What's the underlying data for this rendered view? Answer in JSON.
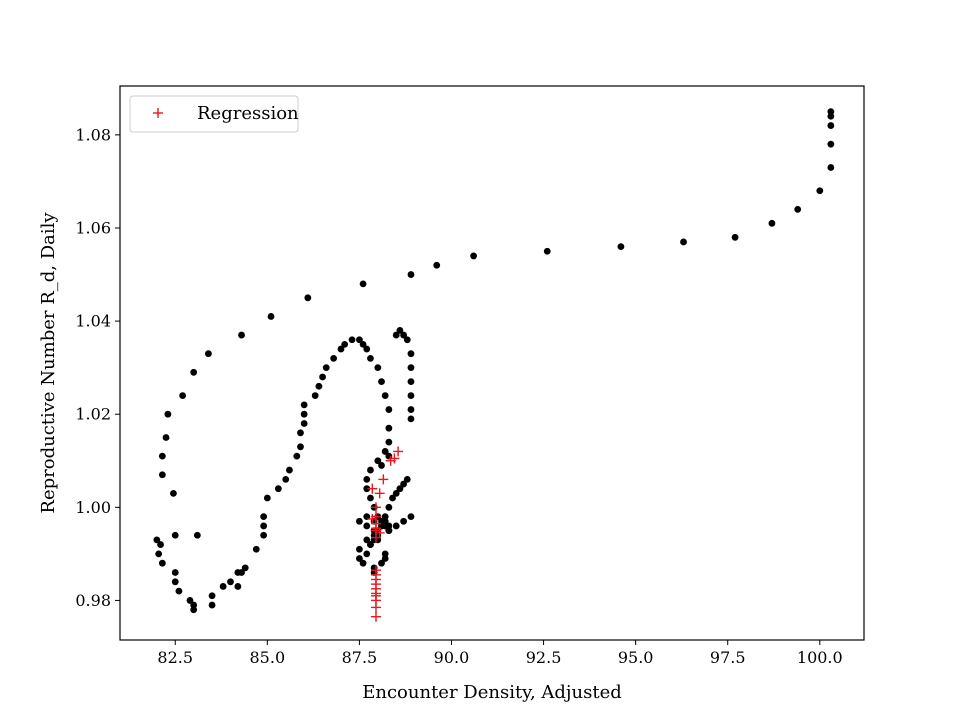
{
  "chart_data": {
    "type": "scatter",
    "title": "",
    "xlabel": "Encounter Density, Adjusted",
    "ylabel": "Reproductive Number R_d, Daily",
    "xlim": [
      81.0,
      101.2
    ],
    "ylim": [
      0.9715,
      1.0905
    ],
    "xticks": [
      82.5,
      85.0,
      87.5,
      90.0,
      92.5,
      95.0,
      97.5,
      100.0
    ],
    "xtick_labels": [
      "82.5",
      "85.0",
      "87.5",
      "90.0",
      "92.5",
      "95.0",
      "97.5",
      "100.0"
    ],
    "yticks": [
      0.98,
      1.0,
      1.02,
      1.04,
      1.06,
      1.08
    ],
    "ytick_labels": [
      "0.98",
      "1.00",
      "1.02",
      "1.04",
      "1.06",
      "1.08"
    ],
    "grid": false,
    "legend": {
      "position": "upper-left",
      "entries": [
        {
          "label": "Regression",
          "marker": "plus",
          "color": "#e41a1c"
        }
      ]
    },
    "colors": {
      "data": "#000000",
      "regression": "#e41a1c"
    },
    "series": [
      {
        "marker": "circle",
        "color": "#000000",
        "x": [
          100.3,
          100.3,
          100.3,
          100.3,
          100.3,
          100.0,
          99.4,
          98.7,
          97.7,
          96.3,
          94.6,
          92.6,
          90.6,
          89.6,
          88.9,
          87.6,
          86.1,
          85.1,
          84.3,
          83.4,
          83.0,
          82.7,
          82.3,
          82.25,
          82.15,
          82.15,
          82.45,
          82.5,
          82.0,
          82.1,
          82.05,
          82.15,
          82.5,
          82.5,
          82.6,
          82.9,
          83.0,
          83.0,
          83.1,
          83.5,
          83.5,
          83.8,
          84.0,
          84.3,
          84.2,
          84.2,
          84.4,
          84.7,
          84.9,
          84.9,
          84.9,
          85.0,
          85.3,
          85.5,
          85.6,
          85.8,
          85.9,
          85.9,
          86.0,
          86.0,
          86.0,
          86.3,
          86.4,
          86.5,
          86.6,
          86.8,
          87.0,
          87.1,
          87.3,
          87.5,
          87.6,
          87.7,
          87.8,
          88.0,
          88.1,
          88.2,
          88.3,
          88.3,
          88.3,
          88.2,
          88.0,
          87.8,
          87.7,
          87.7,
          87.8,
          87.9,
          88.0,
          88.1,
          88.2,
          88.3,
          88.3,
          88.2,
          88.1,
          88.0,
          87.9,
          87.9,
          87.8,
          87.7,
          87.6,
          87.5,
          87.5,
          87.7,
          87.9,
          88.1,
          88.2,
          88.3,
          88.4,
          88.5,
          88.6,
          88.7,
          88.8,
          88.9,
          88.9,
          88.9,
          88.9,
          88.9,
          88.9,
          88.8,
          88.7,
          88.6,
          88.5,
          88.3,
          88.1,
          87.9,
          87.7,
          87.5,
          87.7,
          88.0,
          88.3,
          88.5,
          88.7,
          88.9,
          87.9,
          88.1,
          88.2,
          88.0,
          87.8,
          87.9,
          88.2
        ],
        "y": [
          1.085,
          1.084,
          1.082,
          1.078,
          1.073,
          1.068,
          1.064,
          1.061,
          1.058,
          1.057,
          1.056,
          1.055,
          1.054,
          1.052,
          1.05,
          1.048,
          1.045,
          1.041,
          1.037,
          1.033,
          1.029,
          1.024,
          1.02,
          1.015,
          1.011,
          1.007,
          1.003,
          0.994,
          0.993,
          0.992,
          0.99,
          0.988,
          0.986,
          0.984,
          0.982,
          0.98,
          0.978,
          0.979,
          0.994,
          0.979,
          0.981,
          0.983,
          0.984,
          0.986,
          0.986,
          0.983,
          0.987,
          0.991,
          0.994,
          0.996,
          0.998,
          1.002,
          1.004,
          1.006,
          1.008,
          1.011,
          1.013,
          1.016,
          1.018,
          1.02,
          1.022,
          1.024,
          1.026,
          1.028,
          1.03,
          1.032,
          1.034,
          1.035,
          1.036,
          1.036,
          1.035,
          1.034,
          1.032,
          1.03,
          1.027,
          1.024,
          1.021,
          1.017,
          1.014,
          1.012,
          1.01,
          1.008,
          1.006,
          1.004,
          1.002,
          1.0,
          0.998,
          0.997,
          0.996,
          0.995,
          0.996,
          0.997,
          0.996,
          0.995,
          0.994,
          0.993,
          0.992,
          0.99,
          0.988,
          0.989,
          0.991,
          0.993,
          0.995,
          0.996,
          0.998,
          1.0,
          1.002,
          1.003,
          1.004,
          1.005,
          1.006,
          1.019,
          1.021,
          1.024,
          1.027,
          1.03,
          1.033,
          1.036,
          1.037,
          1.038,
          1.037,
          1.011,
          1.009,
          0.997,
          0.996,
          0.997,
          0.998,
          0.994,
          0.995,
          0.996,
          0.997,
          0.998,
          0.987,
          0.988,
          0.99,
          0.993,
          0.992,
          0.986,
          0.989
        ]
      },
      {
        "name": "Regression",
        "marker": "plus",
        "color": "#e41a1c",
        "x": [
          87.95,
          87.95,
          87.95,
          87.95,
          87.95,
          87.95,
          87.95,
          87.95,
          87.95,
          87.95,
          87.95,
          87.95,
          87.95,
          87.95,
          87.95,
          88.05,
          88.15,
          88.35,
          88.45,
          88.55,
          87.85,
          87.85,
          87.95,
          88.05
        ],
        "y": [
          0.9765,
          0.9785,
          0.98,
          0.981,
          0.9815,
          0.9825,
          0.9835,
          0.9845,
          0.9855,
          0.9865,
          0.9935,
          0.995,
          0.9965,
          0.998,
          1.0,
          1.003,
          1.006,
          1.01,
          1.0105,
          1.012,
          1.004,
          0.9975,
          0.9955,
          0.9945
        ]
      }
    ]
  }
}
